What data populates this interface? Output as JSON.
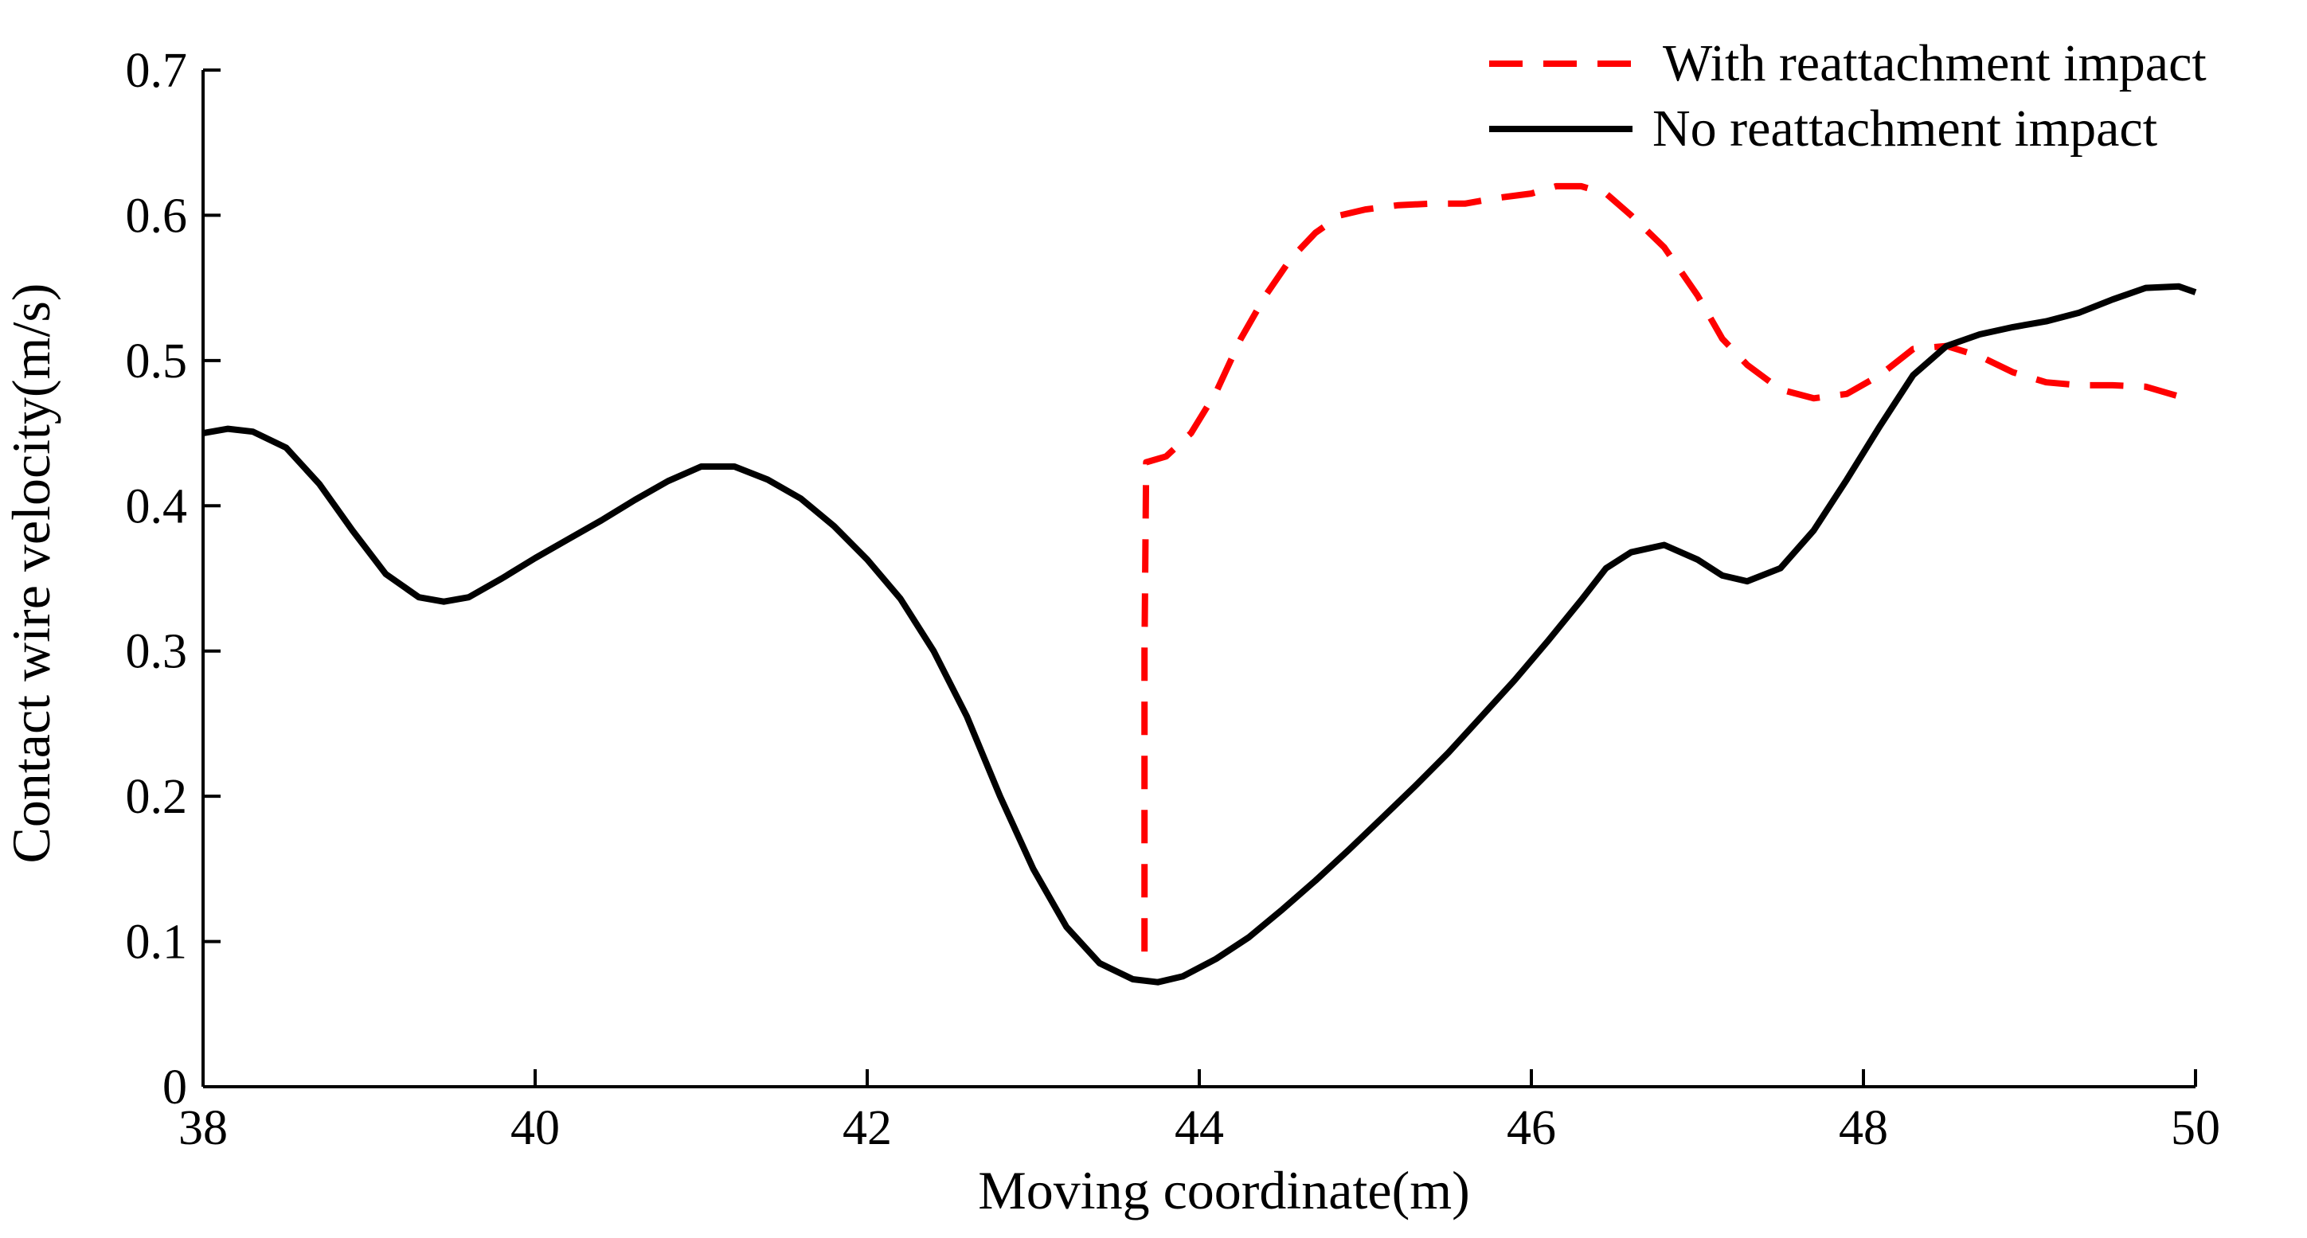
{
  "chart_data": {
    "type": "line",
    "title": "",
    "xlabel": "Moving coordinate(m)",
    "ylabel": "Contact wire velocity(m/s)",
    "xlim": [
      38,
      50
    ],
    "ylim": [
      0,
      0.7
    ],
    "x_ticks": [
      38,
      40,
      42,
      44,
      46,
      48,
      50
    ],
    "x_tick_labels": [
      "38",
      "40",
      "42",
      "44",
      "46",
      "48",
      "50"
    ],
    "y_ticks": [
      0,
      0.1,
      0.2,
      0.3,
      0.4,
      0.5,
      0.6,
      0.7
    ],
    "y_tick_labels": [
      "0",
      "0.1",
      "0.2",
      "0.3",
      "0.4",
      "0.5",
      "0.6",
      "0.7"
    ],
    "grid": false,
    "legend_position": "top-right",
    "series": [
      {
        "name": "With reattachment impact",
        "color": "#ff0000",
        "style": "dashed",
        "x": [
          43.67,
          43.67,
          43.68,
          43.8,
          43.95,
          44.1,
          44.25,
          44.4,
          44.55,
          44.7,
          44.85,
          45.0,
          45.2,
          45.4,
          45.6,
          45.8,
          46.0,
          46.15,
          46.3,
          46.45,
          46.6,
          46.8,
          47.0,
          47.15,
          47.3,
          47.5,
          47.7,
          47.9,
          48.1,
          48.3,
          48.5,
          48.7,
          48.9,
          49.1,
          49.3,
          49.5,
          49.7,
          49.85,
          50.0
        ],
        "y": [
          0.093,
          0.3,
          0.43,
          0.434,
          0.45,
          0.478,
          0.515,
          0.545,
          0.57,
          0.588,
          0.6,
          0.604,
          0.607,
          0.608,
          0.608,
          0.612,
          0.615,
          0.62,
          0.62,
          0.615,
          0.6,
          0.578,
          0.545,
          0.515,
          0.497,
          0.48,
          0.474,
          0.477,
          0.49,
          0.508,
          0.51,
          0.503,
          0.492,
          0.485,
          0.483,
          0.483,
          0.482,
          0.477,
          0.472
        ]
      },
      {
        "name": "No reattachment impact",
        "color": "#000000",
        "style": "solid",
        "x": [
          38.0,
          38.15,
          38.3,
          38.5,
          38.7,
          38.9,
          39.1,
          39.3,
          39.45,
          39.6,
          39.8,
          40.0,
          40.2,
          40.4,
          40.6,
          40.8,
          41.0,
          41.2,
          41.4,
          41.6,
          41.8,
          42.0,
          42.2,
          42.4,
          42.6,
          42.8,
          43.0,
          43.2,
          43.4,
          43.6,
          43.75,
          43.9,
          44.1,
          44.3,
          44.5,
          44.7,
          44.9,
          45.1,
          45.3,
          45.5,
          45.7,
          45.9,
          46.1,
          46.3,
          46.45,
          46.6,
          46.8,
          47.0,
          47.15,
          47.3,
          47.5,
          47.7,
          47.9,
          48.1,
          48.3,
          48.5,
          48.7,
          48.9,
          49.1,
          49.3,
          49.5,
          49.7,
          49.9,
          50.0
        ],
        "y": [
          0.45,
          0.453,
          0.451,
          0.44,
          0.415,
          0.383,
          0.353,
          0.337,
          0.334,
          0.337,
          0.35,
          0.364,
          0.377,
          0.39,
          0.404,
          0.417,
          0.427,
          0.427,
          0.418,
          0.405,
          0.386,
          0.363,
          0.336,
          0.3,
          0.255,
          0.2,
          0.15,
          0.11,
          0.085,
          0.074,
          0.072,
          0.076,
          0.088,
          0.103,
          0.122,
          0.142,
          0.163,
          0.185,
          0.207,
          0.23,
          0.255,
          0.28,
          0.307,
          0.335,
          0.357,
          0.368,
          0.373,
          0.363,
          0.352,
          0.348,
          0.357,
          0.383,
          0.418,
          0.455,
          0.49,
          0.51,
          0.518,
          0.523,
          0.527,
          0.533,
          0.542,
          0.55,
          0.551,
          0.547
        ]
      }
    ]
  }
}
